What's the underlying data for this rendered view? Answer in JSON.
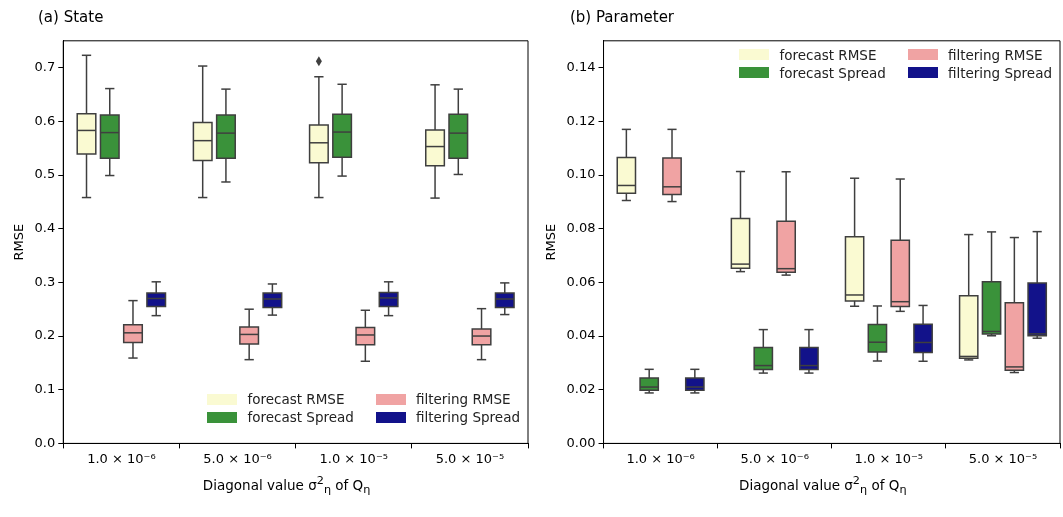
{
  "chart_data": [
    {
      "type": "box",
      "title": "(a) State",
      "xlabel": "Diagonal value σ$^{2}$$_{η}$ of Q$_{η}$",
      "ylabel": "RMSE",
      "categories": [
        "1.0 × 10⁻⁶",
        "5.0 × 10⁻⁶",
        "1.0 × 10⁻⁵",
        "5.0 × 10⁻⁵"
      ],
      "ylim": [
        0,
        0.75
      ],
      "yticks": [
        {
          "value": 0,
          "label": "0.0"
        },
        {
          "value": 0.1,
          "label": "0.1"
        },
        {
          "value": 0.2,
          "label": "0.2"
        },
        {
          "value": 0.3,
          "label": "0.3"
        },
        {
          "value": 0.4,
          "label": "0.4"
        },
        {
          "value": 0.5,
          "label": "0.5"
        },
        {
          "value": 0.6,
          "label": "0.6"
        },
        {
          "value": 0.7,
          "label": "0.7"
        }
      ],
      "legend": "bottom right",
      "series": [
        {
          "name": "forecast RMSE",
          "color": "#fafad2",
          "boxes": [
            {
              "low": 0.458,
              "q1": 0.539,
              "median": 0.583,
              "q3": 0.614,
              "high": 0.723
            },
            {
              "low": 0.458,
              "q1": 0.527,
              "median": 0.564,
              "q3": 0.598,
              "high": 0.703
            },
            {
              "low": 0.458,
              "q1": 0.523,
              "median": 0.56,
              "q3": 0.593,
              "high": 0.683,
              "outliers": [
                0.712
              ]
            },
            {
              "low": 0.457,
              "q1": 0.517,
              "median": 0.553,
              "q3": 0.584,
              "high": 0.668
            }
          ]
        },
        {
          "name": "forecast Spread",
          "color": "#3a923a",
          "boxes": [
            {
              "low": 0.499,
              "q1": 0.531,
              "median": 0.579,
              "q3": 0.612,
              "high": 0.661
            },
            {
              "low": 0.487,
              "q1": 0.531,
              "median": 0.578,
              "q3": 0.612,
              "high": 0.66
            },
            {
              "low": 0.498,
              "q1": 0.533,
              "median": 0.58,
              "q3": 0.613,
              "high": 0.669
            },
            {
              "low": 0.501,
              "q1": 0.531,
              "median": 0.578,
              "q3": 0.613,
              "high": 0.66
            }
          ]
        },
        {
          "name": "filtering RMSE",
          "color": "#f0a3a3",
          "boxes": [
            {
              "low": 0.159,
              "q1": 0.188,
              "median": 0.206,
              "q3": 0.221,
              "high": 0.266
            },
            {
              "low": 0.156,
              "q1": 0.185,
              "median": 0.203,
              "q3": 0.217,
              "high": 0.25
            },
            {
              "low": 0.153,
              "q1": 0.184,
              "median": 0.202,
              "q3": 0.216,
              "high": 0.248
            },
            {
              "low": 0.156,
              "q1": 0.184,
              "median": 0.2,
              "q3": 0.213,
              "high": 0.251
            }
          ]
        },
        {
          "name": "filtering Spread",
          "color": "#12128a",
          "boxes": [
            {
              "low": 0.238,
              "q1": 0.255,
              "median": 0.27,
              "q3": 0.28,
              "high": 0.301
            },
            {
              "low": 0.239,
              "q1": 0.253,
              "median": 0.269,
              "q3": 0.28,
              "high": 0.297
            },
            {
              "low": 0.238,
              "q1": 0.255,
              "median": 0.271,
              "q3": 0.281,
              "high": 0.301
            },
            {
              "low": 0.24,
              "q1": 0.253,
              "median": 0.269,
              "q3": 0.28,
              "high": 0.299
            }
          ]
        }
      ]
    },
    {
      "type": "box",
      "title": "(b) Parameter",
      "xlabel": "Diagonal value σ$^{2}$$_{η}$ of Q$_{η}$",
      "ylabel": "RMSE",
      "categories": [
        "1.0 × 10⁻⁶",
        "5.0 × 10⁻⁶",
        "1.0 × 10⁻⁵",
        "5.0 × 10⁻⁵"
      ],
      "ylim": [
        0,
        0.15
      ],
      "yticks": [
        {
          "value": 0,
          "label": "0.00"
        },
        {
          "value": 0.02,
          "label": "0.02"
        },
        {
          "value": 0.04,
          "label": "0.04"
        },
        {
          "value": 0.06,
          "label": "0.06"
        },
        {
          "value": 0.08,
          "label": "0.08"
        },
        {
          "value": 0.1,
          "label": "0.10"
        },
        {
          "value": 0.12,
          "label": "0.12"
        },
        {
          "value": 0.14,
          "label": "0.14"
        }
      ],
      "legend": "top right",
      "series": [
        {
          "name": "forecast RMSE",
          "color": "#fafad2",
          "boxes": [
            {
              "low": 0.0905,
              "q1": 0.0932,
              "median": 0.0961,
              "q3": 0.1065,
              "high": 0.117
            },
            {
              "low": 0.064,
              "q1": 0.0653,
              "median": 0.0668,
              "q3": 0.0838,
              "high": 0.1013
            },
            {
              "low": 0.0511,
              "q1": 0.0531,
              "median": 0.0553,
              "q3": 0.077,
              "high": 0.0988
            },
            {
              "low": 0.0311,
              "q1": 0.0317,
              "median": 0.0324,
              "q3": 0.055,
              "high": 0.0778
            }
          ]
        },
        {
          "name": "forecast Spread",
          "color": "#3a923a",
          "boxes": [
            {
              "low": 0.0188,
              "q1": 0.0198,
              "median": 0.021,
              "q3": 0.0244,
              "high": 0.0276
            },
            {
              "low": 0.0262,
              "q1": 0.0275,
              "median": 0.029,
              "q3": 0.0357,
              "high": 0.0424
            },
            {
              "low": 0.0307,
              "q1": 0.0341,
              "median": 0.0377,
              "q3": 0.0443,
              "high": 0.0512
            },
            {
              "low": 0.0401,
              "q1": 0.0408,
              "median": 0.0417,
              "q3": 0.0602,
              "high": 0.0788
            }
          ]
        },
        {
          "name": "filtering RMSE",
          "color": "#f0a3a3",
          "boxes": [
            {
              "low": 0.0901,
              "q1": 0.0927,
              "median": 0.0956,
              "q3": 0.1063,
              "high": 0.117
            },
            {
              "low": 0.0627,
              "q1": 0.0638,
              "median": 0.0651,
              "q3": 0.0828,
              "high": 0.1012
            },
            {
              "low": 0.0492,
              "q1": 0.051,
              "median": 0.0528,
              "q3": 0.0757,
              "high": 0.0985
            },
            {
              "low": 0.0264,
              "q1": 0.0273,
              "median": 0.0285,
              "q3": 0.0524,
              "high": 0.0767
            }
          ]
        },
        {
          "name": "filtering Spread",
          "color": "#12128a",
          "boxes": [
            {
              "low": 0.0188,
              "q1": 0.0198,
              "median": 0.021,
              "q3": 0.0244,
              "high": 0.0276
            },
            {
              "low": 0.0262,
              "q1": 0.0275,
              "median": 0.029,
              "q3": 0.0357,
              "high": 0.0424
            },
            {
              "low": 0.0306,
              "q1": 0.0339,
              "median": 0.0376,
              "q3": 0.0444,
              "high": 0.0514
            },
            {
              "low": 0.0392,
              "q1": 0.0401,
              "median": 0.0408,
              "q3": 0.0598,
              "high": 0.0789
            }
          ]
        }
      ]
    }
  ]
}
